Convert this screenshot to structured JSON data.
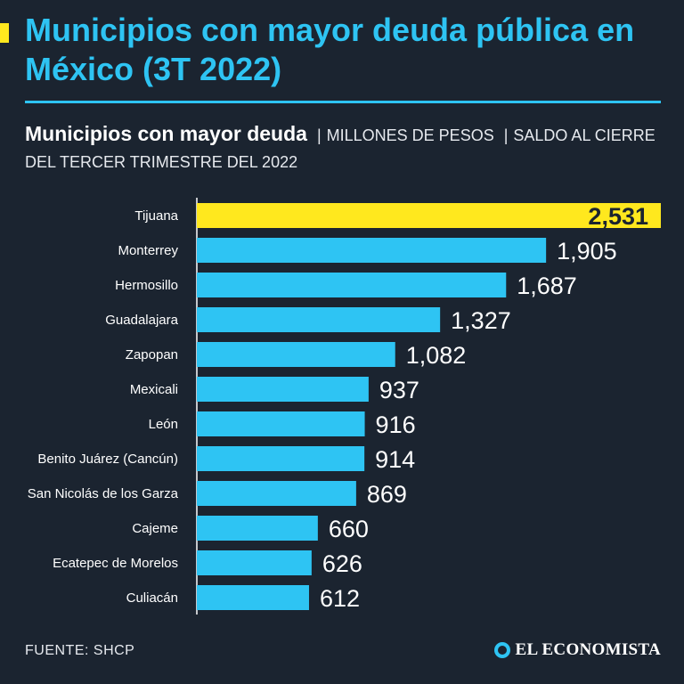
{
  "header": {
    "title": "Municipios con mayor deuda pública en México (3T 2022)",
    "subtitle_lead": "Municipios con mayor deuda",
    "subtitle_sep1": "|",
    "subtitle_unit": "MILLONES DE PESOS",
    "subtitle_sep2": "|",
    "subtitle_rest": "SALDO AL CIERRE DEL TERCER TRIMESTRE DEL 2022"
  },
  "footer": {
    "source": "FUENTE: SHCP",
    "brand": "EL ECONOMISTA"
  },
  "colors": {
    "background": "#1b2430",
    "bar": "#2ec4f3",
    "highlight": "#ffe81e",
    "title": "#2ec4f3"
  },
  "chart_data": {
    "type": "bar",
    "orientation": "horizontal",
    "title": "Municipios con mayor deuda",
    "unit": "Millones de pesos",
    "categories": [
      "Tijuana",
      "Monterrey",
      "Hermosillo",
      "Guadalajara",
      "Zapopan",
      "Mexicali",
      "León",
      "Benito Juárez (Cancún)",
      "San Nicolás de los Garza",
      "Cajeme",
      "Ecatepec de Morelos",
      "Culiacán"
    ],
    "values": [
      2531,
      1905,
      1687,
      1327,
      1082,
      937,
      916,
      914,
      869,
      660,
      626,
      612
    ],
    "value_labels": [
      "2,531",
      "1,905",
      "1,687",
      "1,327",
      "1,082",
      "937",
      "916",
      "914",
      "869",
      "660",
      "626",
      "612"
    ],
    "highlight_index": 0,
    "xlim": [
      0,
      2531
    ]
  }
}
